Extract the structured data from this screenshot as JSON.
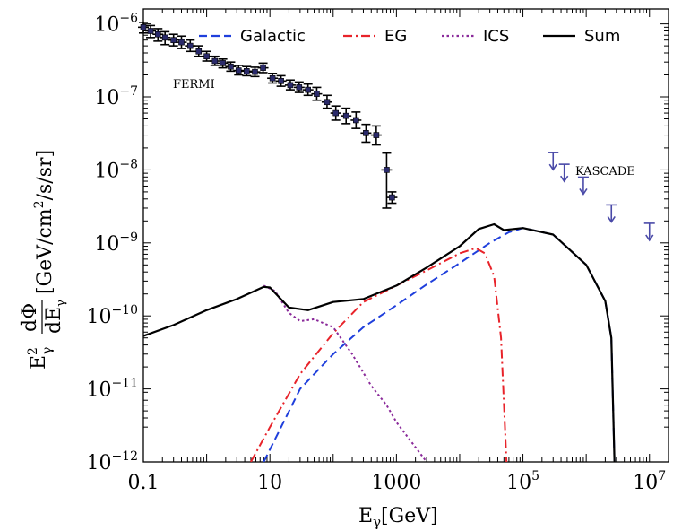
{
  "chart_data": {
    "type": "line",
    "xscale": "log",
    "yscale": "log",
    "xlim": [
      0.1,
      20000000
    ],
    "ylim": [
      1e-12,
      1.6e-06
    ],
    "x_ticks": [
      {
        "value": 0.1,
        "label": "0.1"
      },
      {
        "value": 10,
        "label": "10"
      },
      {
        "value": 1000,
        "label": "1000"
      },
      {
        "value": 100000,
        "base": "10",
        "exp": "5"
      },
      {
        "value": 10000000,
        "base": "10",
        "exp": "7"
      }
    ],
    "y_ticks": [
      {
        "value": 1e-12,
        "base": "10",
        "exp": "−12"
      },
      {
        "value": 1e-11,
        "base": "10",
        "exp": "−11"
      },
      {
        "value": 1e-10,
        "base": "10",
        "exp": "−10"
      },
      {
        "value": 1e-09,
        "base": "10",
        "exp": "−9"
      },
      {
        "value": 1e-08,
        "base": "10",
        "exp": "−8"
      },
      {
        "value": 1e-07,
        "base": "10",
        "exp": "−7"
      },
      {
        "value": 1e-06,
        "base": "10",
        "exp": "−6"
      }
    ],
    "xlabel": {
      "main": "E",
      "sub": "γ",
      "rest": "[GeV]"
    },
    "ylabel": {
      "prefix": "E",
      "prefix_sup": "2",
      "prefix_sub": "γ",
      "num": "dΦ",
      "den": "dE",
      "den_sub": "γ",
      "units_a": "[GeV/cm",
      "units_sup": "2",
      "units_b": "/s/sr]"
    },
    "legend_placement": "top",
    "series": [
      {
        "name": "Galactic",
        "color": "#1f3fdc",
        "dash": "dashed",
        "points": [
          [
            8,
            1e-12
          ],
          [
            30,
            1e-11
          ],
          [
            100,
            3e-11
          ],
          [
            300,
            7e-11
          ],
          [
            1000,
            1.4e-10
          ],
          [
            3000,
            2.7e-10
          ],
          [
            10000,
            5.3e-10
          ],
          [
            30000,
            1e-09
          ],
          [
            60000,
            1.4e-09
          ],
          [
            100000,
            1.6e-09
          ],
          [
            300000,
            1.3e-09
          ],
          [
            1000000,
            5e-10
          ],
          [
            2000000,
            1.6e-10
          ],
          [
            2500000,
            5e-11
          ],
          [
            2800000,
            1e-12
          ]
        ]
      },
      {
        "name": "EG",
        "color": "#e8232a",
        "dash": "dashdot",
        "points": [
          [
            5,
            1e-12
          ],
          [
            10,
            3e-12
          ],
          [
            30,
            1.6e-11
          ],
          [
            100,
            5.8e-11
          ],
          [
            300,
            1.55e-10
          ],
          [
            1000,
            2.6e-10
          ],
          [
            3000,
            4.2e-10
          ],
          [
            10000,
            7.2e-10
          ],
          [
            18000,
            8.5e-10
          ],
          [
            25000,
            7.2e-10
          ],
          [
            35000,
            3.5e-10
          ],
          [
            45000,
            5e-11
          ],
          [
            55000,
            1e-12
          ]
        ]
      },
      {
        "name": "ICS",
        "color": "#8a2a9a",
        "dash": "dotted",
        "points": [
          [
            8,
            2.6e-10
          ],
          [
            12,
            2.2e-10
          ],
          [
            20,
            1.1e-10
          ],
          [
            30,
            8.5e-11
          ],
          [
            50,
            9e-11
          ],
          [
            100,
            7e-11
          ],
          [
            200,
            3e-11
          ],
          [
            400,
            1.1e-11
          ],
          [
            700,
            6e-12
          ],
          [
            1000,
            3.5e-12
          ],
          [
            3000,
            1e-12
          ]
        ]
      },
      {
        "name": "Sum",
        "color": "#000000",
        "dash": "solid",
        "points": [
          [
            0.1,
            5.3e-11
          ],
          [
            0.3,
            7.5e-11
          ],
          [
            1,
            1.2e-10
          ],
          [
            3,
            1.7e-10
          ],
          [
            8,
            2.5e-10
          ],
          [
            10,
            2.45e-10
          ],
          [
            20,
            1.3e-10
          ],
          [
            40,
            1.2e-10
          ],
          [
            100,
            1.55e-10
          ],
          [
            300,
            1.7e-10
          ],
          [
            1000,
            2.6e-10
          ],
          [
            3000,
            4.6e-10
          ],
          [
            10000,
            9e-10
          ],
          [
            20000,
            1.55e-09
          ],
          [
            35000,
            1.8e-09
          ],
          [
            50000,
            1.5e-09
          ],
          [
            100000,
            1.6e-09
          ],
          [
            300000,
            1.3e-09
          ],
          [
            1000000,
            5e-10
          ],
          [
            2000000,
            1.6e-10
          ],
          [
            2500000,
            5e-11
          ],
          [
            2800000,
            1e-12
          ]
        ]
      }
    ],
    "fermi": {
      "label": "FERMI",
      "color": "#000000",
      "points": [
        {
          "x": 0.1,
          "y": 9e-07,
          "lo": 7.5e-07,
          "hi": 1.05e-06
        },
        {
          "x": 0.13,
          "y": 8e-07,
          "lo": 6.5e-07,
          "hi": 9.5e-07
        },
        {
          "x": 0.17,
          "y": 7.2e-07,
          "lo": 5.8e-07,
          "hi": 8.6e-07
        },
        {
          "x": 0.22,
          "y": 6.5e-07,
          "lo": 5.2e-07,
          "hi": 7.8e-07
        },
        {
          "x": 0.3,
          "y": 6e-07,
          "lo": 5e-07,
          "hi": 7.2e-07
        },
        {
          "x": 0.4,
          "y": 5.6e-07,
          "lo": 4.6e-07,
          "hi": 6.8e-07
        },
        {
          "x": 0.55,
          "y": 5e-07,
          "lo": 4.2e-07,
          "hi": 6e-07
        },
        {
          "x": 0.75,
          "y": 4.2e-07,
          "lo": 3.6e-07,
          "hi": 5e-07
        },
        {
          "x": 1.0,
          "y": 3.6e-07,
          "lo": 3.1e-07,
          "hi": 4.2e-07
        },
        {
          "x": 1.35,
          "y": 3.1e-07,
          "lo": 2.7e-07,
          "hi": 3.6e-07
        },
        {
          "x": 1.8,
          "y": 2.9e-07,
          "lo": 2.5e-07,
          "hi": 3.3e-07
        },
        {
          "x": 2.4,
          "y": 2.6e-07,
          "lo": 2.25e-07,
          "hi": 3e-07
        },
        {
          "x": 3.2,
          "y": 2.3e-07,
          "lo": 2e-07,
          "hi": 2.7e-07
        },
        {
          "x": 4.3,
          "y": 2.25e-07,
          "lo": 1.95e-07,
          "hi": 2.6e-07
        },
        {
          "x": 5.8,
          "y": 2.2e-07,
          "lo": 1.9e-07,
          "hi": 2.55e-07
        },
        {
          "x": 7.8,
          "y": 2.5e-07,
          "lo": 2.15e-07,
          "hi": 2.9e-07
        },
        {
          "x": 11,
          "y": 1.8e-07,
          "lo": 1.55e-07,
          "hi": 2.1e-07
        },
        {
          "x": 15,
          "y": 1.65e-07,
          "lo": 1.4e-07,
          "hi": 1.95e-07
        },
        {
          "x": 21,
          "y": 1.45e-07,
          "lo": 1.25e-07,
          "hi": 1.7e-07
        },
        {
          "x": 29,
          "y": 1.35e-07,
          "lo": 1.15e-07,
          "hi": 1.6e-07
        },
        {
          "x": 40,
          "y": 1.25e-07,
          "lo": 1.05e-07,
          "hi": 1.5e-07
        },
        {
          "x": 55,
          "y": 1.1e-07,
          "lo": 9e-08,
          "hi": 1.35e-07
        },
        {
          "x": 80,
          "y": 8.5e-08,
          "lo": 7e-08,
          "hi": 1.05e-07
        },
        {
          "x": 110,
          "y": 6e-08,
          "lo": 4.8e-08,
          "hi": 7.5e-08
        },
        {
          "x": 160,
          "y": 5.5e-08,
          "lo": 4.3e-08,
          "hi": 7e-08
        },
        {
          "x": 230,
          "y": 4.8e-08,
          "lo": 3.7e-08,
          "hi": 6.2e-08
        },
        {
          "x": 330,
          "y": 3.2e-08,
          "lo": 2.4e-08,
          "hi": 4.2e-08
        },
        {
          "x": 480,
          "y": 3e-08,
          "lo": 2.2e-08,
          "hi": 4e-08
        },
        {
          "x": 700,
          "y": 1e-08,
          "lo": 3e-09,
          "hi": 1.7e-08
        },
        {
          "x": 850,
          "y": 4.2e-09,
          "lo": 3.5e-09,
          "hi": 5e-09
        }
      ]
    },
    "kascade": {
      "label": "KASCADE",
      "color": "#4a4aa8",
      "points": [
        {
          "x": 300000,
          "y": 1.3e-08
        },
        {
          "x": 450000,
          "y": 9e-09
        },
        {
          "x": 900000,
          "y": 6e-09
        },
        {
          "x": 2500000,
          "y": 2.5e-09
        },
        {
          "x": 10000000,
          "y": 1.4e-09
        }
      ]
    }
  }
}
